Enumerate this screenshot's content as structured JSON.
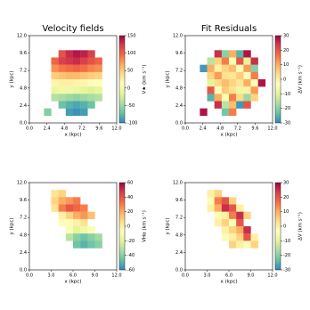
{
  "chart_data": [
    {
      "type": "heatmap",
      "title": "Velocity fields",
      "x_label": "x (kpc)",
      "y_label": "y (kpc)",
      "colorbar_label": "V★ (km s⁻¹)",
      "xlim": [
        0,
        12
      ],
      "ylim": [
        0,
        12
      ],
      "xticks": [
        {
          "value": 0,
          "label": "0.0"
        },
        {
          "value": 2.4,
          "label": "2.4"
        },
        {
          "value": 4.8,
          "label": "4.8"
        },
        {
          "value": 7.2,
          "label": "7.2"
        },
        {
          "value": 9.6,
          "label": "9.6"
        },
        {
          "value": 12,
          "label": "12.0"
        }
      ],
      "yticks": [
        {
          "value": 0,
          "label": "0.0"
        },
        {
          "value": 2.4,
          "label": "2.4"
        },
        {
          "value": 4.8,
          "label": "4.8"
        },
        {
          "value": 7.2,
          "label": "7.2"
        },
        {
          "value": 9.6,
          "label": "9.6"
        },
        {
          "value": 12,
          "label": "12.0"
        }
      ],
      "zlim": [
        -100,
        150
      ],
      "zticks": [
        150,
        100,
        50,
        0,
        -50,
        -100
      ],
      "colormap": [
        "#3288bd",
        "#66c2a5",
        "#abdda4",
        "#e6f598",
        "#ffffbf",
        "#fee08b",
        "#fdae61",
        "#f46d43",
        "#d53e4f",
        "#9e0142"
      ],
      "x": [
        0.5,
        1.5,
        2.5,
        3.5,
        4.5,
        5.5,
        6.5,
        7.5,
        8.5,
        9.5,
        10.5,
        11.5
      ],
      "y": [
        11.5,
        10.5,
        9.5,
        8.5,
        7.5,
        6.5,
        5.5,
        4.5,
        3.5,
        2.5,
        1.5,
        0.5
      ],
      "z": [
        [
          null,
          null,
          null,
          null,
          null,
          null,
          null,
          null,
          null,
          null,
          null,
          null
        ],
        [
          null,
          null,
          null,
          null,
          null,
          null,
          null,
          null,
          null,
          null,
          null,
          null
        ],
        [
          null,
          null,
          null,
          null,
          110,
          130,
          140,
          135,
          120,
          null,
          null,
          null
        ],
        [
          null,
          null,
          null,
          100,
          120,
          125,
          130,
          120,
          110,
          100,
          null,
          null
        ],
        [
          null,
          null,
          null,
          80,
          90,
          95,
          100,
          95,
          85,
          80,
          null,
          null
        ],
        [
          null,
          null,
          null,
          50,
          55,
          60,
          60,
          55,
          50,
          45,
          null,
          null
        ],
        [
          null,
          null,
          null,
          20,
          25,
          25,
          20,
          20,
          15,
          10,
          null,
          null
        ],
        [
          null,
          null,
          null,
          -10,
          -5,
          -5,
          -10,
          -15,
          -20,
          -15,
          null,
          null
        ],
        [
          null,
          null,
          null,
          -40,
          -45,
          -50,
          -55,
          -50,
          -45,
          -40,
          null,
          null
        ],
        [
          null,
          null,
          null,
          null,
          -70,
          -80,
          -85,
          -80,
          -70,
          null,
          null,
          null
        ],
        [
          null,
          null,
          -60,
          null,
          null,
          -90,
          -95,
          -90,
          null,
          null,
          null,
          null
        ],
        [
          null,
          null,
          null,
          null,
          null,
          null,
          null,
          null,
          null,
          null,
          null,
          null
        ]
      ]
    },
    {
      "type": "heatmap",
      "title": "Fit Residuals",
      "x_label": "x (kpc)",
      "y_label": "y (kpc)",
      "colorbar_label": "ΔV (km s⁻¹)",
      "xlim": [
        0,
        12
      ],
      "ylim": [
        0,
        12
      ],
      "xticks": [
        {
          "value": 0,
          "label": "0.0"
        },
        {
          "value": 2.4,
          "label": "2.4"
        },
        {
          "value": 4.8,
          "label": "4.8"
        },
        {
          "value": 7.2,
          "label": "7.2"
        },
        {
          "value": 9.6,
          "label": "9.6"
        },
        {
          "value": 12,
          "label": "12.0"
        }
      ],
      "yticks": [
        {
          "value": 0,
          "label": "0.0"
        },
        {
          "value": 2.4,
          "label": "2.4"
        },
        {
          "value": 4.8,
          "label": "4.8"
        },
        {
          "value": 7.2,
          "label": "7.2"
        },
        {
          "value": 9.6,
          "label": "9.6"
        },
        {
          "value": 12,
          "label": "12.0"
        }
      ],
      "zlim": [
        -30,
        30
      ],
      "zticks": [
        30,
        20,
        10,
        0,
        -10,
        -20,
        -30
      ],
      "colormap": [
        "#3288bd",
        "#66c2a5",
        "#abdda4",
        "#e6f598",
        "#ffffbf",
        "#fee08b",
        "#fdae61",
        "#f46d43",
        "#d53e4f",
        "#9e0142"
      ],
      "x": [
        0.5,
        1.5,
        2.5,
        3.5,
        4.5,
        5.5,
        6.5,
        7.5,
        8.5,
        9.5,
        10.5,
        11.5
      ],
      "y": [
        11.5,
        10.5,
        9.5,
        8.5,
        7.5,
        6.5,
        5.5,
        4.5,
        3.5,
        2.5,
        1.5,
        0.5
      ],
      "z": [
        [
          null,
          null,
          null,
          null,
          null,
          null,
          null,
          null,
          null,
          null,
          null,
          null
        ],
        [
          null,
          null,
          null,
          null,
          null,
          null,
          null,
          null,
          null,
          null,
          null,
          null
        ],
        [
          null,
          null,
          null,
          null,
          25,
          -20,
          10,
          -25,
          28,
          null,
          null,
          null
        ],
        [
          null,
          null,
          null,
          -15,
          5,
          15,
          -5,
          20,
          -10,
          25,
          null,
          null
        ],
        [
          null,
          null,
          -28,
          10,
          0,
          5,
          8,
          -5,
          12,
          -20,
          null,
          null
        ],
        [
          null,
          null,
          null,
          5,
          12,
          3,
          2,
          6,
          -3,
          15,
          null,
          null
        ],
        [
          null,
          null,
          null,
          -10,
          4,
          8,
          5,
          2,
          10,
          -5,
          28,
          null
        ],
        [
          null,
          null,
          null,
          20,
          -3,
          6,
          3,
          -8,
          0,
          12,
          null,
          null
        ],
        [
          null,
          null,
          null,
          -25,
          10,
          -5,
          15,
          4,
          -18,
          5,
          null,
          null
        ],
        [
          null,
          null,
          null,
          null,
          25,
          -15,
          8,
          -28,
          20,
          null,
          null,
          null
        ],
        [
          null,
          null,
          28,
          null,
          null,
          -22,
          15,
          null,
          null,
          null,
          null,
          null
        ],
        [
          null,
          null,
          null,
          null,
          null,
          null,
          null,
          null,
          null,
          null,
          null,
          null
        ]
      ]
    },
    {
      "type": "heatmap",
      "x_label": "x (kpc)",
      "y_label": "y (kpc)",
      "colorbar_label": "VHα (km s⁻¹)",
      "xlim": [
        0,
        12
      ],
      "ylim": [
        0,
        12
      ],
      "xticks": [
        {
          "value": 0,
          "label": "0.0"
        },
        {
          "value": 3,
          "label": "3.0"
        },
        {
          "value": 6,
          "label": "6.0"
        },
        {
          "value": 9,
          "label": "9.0"
        },
        {
          "value": 12,
          "label": "12.0"
        }
      ],
      "yticks": [
        {
          "value": 0,
          "label": "0.0"
        },
        {
          "value": 2.4,
          "label": "2.4"
        },
        {
          "value": 4.8,
          "label": "4.8"
        },
        {
          "value": 7.2,
          "label": "7.2"
        },
        {
          "value": 9.6,
          "label": "9.6"
        },
        {
          "value": 12,
          "label": "12.0"
        }
      ],
      "zlim": [
        -60,
        60
      ],
      "zticks": [
        60,
        40,
        20,
        0,
        -20,
        -40,
        -60
      ],
      "colormap": [
        "#3288bd",
        "#66c2a5",
        "#abdda4",
        "#e6f598",
        "#ffffbf",
        "#fee08b",
        "#fdae61",
        "#f46d43",
        "#d53e4f",
        "#9e0142"
      ],
      "x": [
        0.5,
        1.5,
        2.5,
        3.5,
        4.5,
        5.5,
        6.5,
        7.5,
        8.5,
        9.5,
        10.5,
        11.5
      ],
      "y": [
        11.5,
        10.5,
        9.5,
        8.5,
        7.5,
        6.5,
        5.5,
        4.5,
        3.5,
        2.5,
        1.5,
        0.5
      ],
      "z": [
        [
          null,
          null,
          null,
          null,
          null,
          null,
          null,
          null,
          null,
          null,
          null,
          null
        ],
        [
          null,
          null,
          null,
          5,
          10,
          null,
          null,
          null,
          null,
          null,
          null,
          null
        ],
        [
          null,
          null,
          null,
          10,
          20,
          25,
          30,
          null,
          null,
          null,
          null,
          null
        ],
        [
          null,
          null,
          null,
          5,
          30,
          40,
          35,
          30,
          null,
          null,
          null,
          null
        ],
        [
          null,
          null,
          null,
          null,
          0,
          10,
          20,
          25,
          15,
          null,
          null,
          null
        ],
        [
          null,
          null,
          null,
          null,
          -5,
          -5,
          0,
          5,
          null,
          null,
          null,
          null
        ],
        [
          null,
          null,
          null,
          null,
          null,
          -10,
          -20,
          -15,
          -10,
          null,
          null,
          null
        ],
        [
          null,
          null,
          null,
          null,
          null,
          -30,
          -40,
          -45,
          -40,
          -35,
          null,
          null
        ],
        [
          null,
          null,
          null,
          null,
          null,
          null,
          -45,
          -50,
          -45,
          -40,
          null,
          null
        ],
        [
          null,
          null,
          null,
          null,
          null,
          null,
          null,
          null,
          null,
          null,
          null,
          null
        ],
        [
          null,
          null,
          null,
          null,
          null,
          null,
          null,
          null,
          null,
          null,
          null,
          null
        ],
        [
          null,
          null,
          null,
          null,
          null,
          null,
          null,
          null,
          null,
          null,
          null,
          null
        ]
      ]
    },
    {
      "type": "heatmap",
      "x_label": "x (kpc)",
      "y_label": "y (kpc)",
      "colorbar_label": "ΔV (km s⁻¹)",
      "xlim": [
        0,
        12
      ],
      "ylim": [
        0,
        12
      ],
      "xticks": [
        {
          "value": 0,
          "label": "0.0"
        },
        {
          "value": 3,
          "label": "3.0"
        },
        {
          "value": 6,
          "label": "6.0"
        },
        {
          "value": 9,
          "label": "9.0"
        },
        {
          "value": 12,
          "label": "12.0"
        }
      ],
      "yticks": [
        {
          "value": 0,
          "label": "0.0"
        },
        {
          "value": 2.4,
          "label": "2.4"
        },
        {
          "value": 4.8,
          "label": "4.8"
        },
        {
          "value": 7.2,
          "label": "7.2"
        },
        {
          "value": 9.6,
          "label": "9.6"
        },
        {
          "value": 12,
          "label": "12.0"
        }
      ],
      "zlim": [
        -30,
        30
      ],
      "zticks": [
        30,
        20,
        10,
        0,
        -10,
        -20,
        -30
      ],
      "colormap": [
        "#3288bd",
        "#66c2a5",
        "#abdda4",
        "#e6f598",
        "#ffffbf",
        "#fee08b",
        "#fdae61",
        "#f46d43",
        "#d53e4f",
        "#9e0142"
      ],
      "x": [
        0.5,
        1.5,
        2.5,
        3.5,
        4.5,
        5.5,
        6.5,
        7.5,
        8.5,
        9.5,
        10.5,
        11.5
      ],
      "y": [
        11.5,
        10.5,
        9.5,
        8.5,
        7.5,
        6.5,
        5.5,
        4.5,
        3.5,
        2.5,
        1.5,
        0.5
      ],
      "z": [
        [
          null,
          null,
          null,
          null,
          null,
          null,
          null,
          null,
          null,
          null,
          null,
          null
        ],
        [
          null,
          null,
          null,
          0,
          5,
          null,
          null,
          null,
          null,
          null,
          null,
          null
        ],
        [
          null,
          null,
          null,
          -5,
          15,
          20,
          5,
          null,
          null,
          null,
          null,
          null
        ],
        [
          null,
          null,
          null,
          0,
          10,
          25,
          20,
          0,
          null,
          null,
          null,
          null
        ],
        [
          null,
          null,
          null,
          null,
          -5,
          0,
          15,
          25,
          5,
          null,
          null,
          null
        ],
        [
          null,
          null,
          null,
          null,
          0,
          5,
          -5,
          20,
          null,
          null,
          null,
          null
        ],
        [
          null,
          null,
          null,
          null,
          null,
          0,
          5,
          10,
          25,
          null,
          null,
          null
        ],
        [
          null,
          null,
          null,
          null,
          null,
          -5,
          0,
          5,
          20,
          0,
          null,
          null
        ],
        [
          null,
          null,
          null,
          null,
          null,
          null,
          5,
          0,
          -5,
          5,
          null,
          null
        ],
        [
          null,
          null,
          null,
          null,
          null,
          null,
          null,
          null,
          null,
          null,
          null,
          null
        ],
        [
          null,
          null,
          null,
          null,
          null,
          null,
          null,
          null,
          null,
          null,
          null,
          null
        ],
        [
          null,
          null,
          null,
          null,
          null,
          null,
          null,
          null,
          null,
          null,
          null,
          null
        ]
      ]
    }
  ]
}
